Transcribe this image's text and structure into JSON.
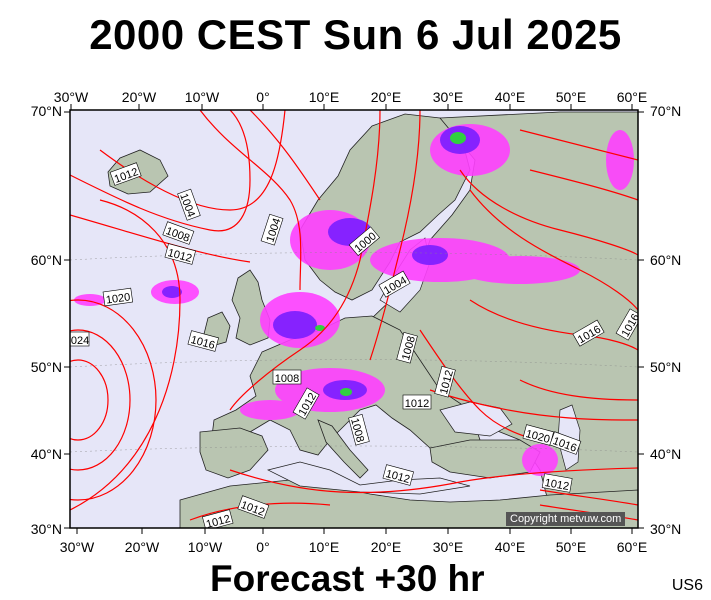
{
  "header": {
    "title": "2000 CEST Sun 6 Jul 2025"
  },
  "footer": {
    "forecast": "Forecast +30 hr",
    "model_code": "US6"
  },
  "map": {
    "copyright": "Copyright metvuw.com",
    "lon_labels": [
      "30°W",
      "20°W",
      "10°W",
      "0°",
      "10°E",
      "20°E",
      "30°E",
      "40°E",
      "50°E",
      "60°E"
    ],
    "lat_labels": [
      "70°N",
      "60°N",
      "50°N",
      "40°N",
      "30°N"
    ],
    "isobar_labels": [
      "1012",
      "1004",
      "1008",
      "1012",
      "1004",
      "1000",
      "1020",
      "1016",
      "1004",
      "1008",
      "1008",
      "1012",
      "1012",
      "1016",
      "1012",
      "1012",
      "1020",
      "1016",
      "1008",
      "1012",
      "1012",
      "1024",
      "1012",
      "1016"
    ],
    "colors": {
      "isobar": "#ff0000",
      "sea": "#e8e8f8",
      "land": "#b8c4b0",
      "rain_light": "#ff40ff",
      "rain_mid": "#8020ff",
      "rain_heavy": "#30d040"
    }
  }
}
